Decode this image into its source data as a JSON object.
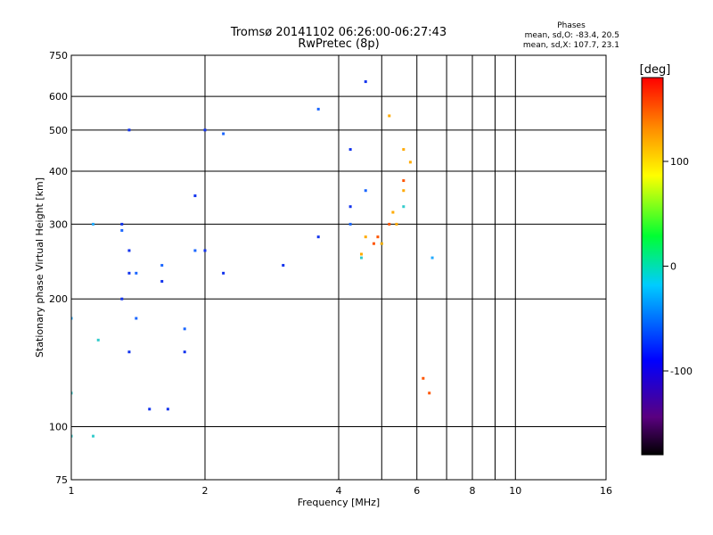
{
  "chart_data": {
    "type": "scatter",
    "title": "Tromsø 20141102 06:26:00-06:27:43",
    "subtitle": "RwPretec (8p)",
    "xlabel": "Frequency [MHz]",
    "ylabel": "Stationary phase Virtual Height [km]",
    "x_scale": "log",
    "y_scale": "log",
    "xlim": [
      1,
      16
    ],
    "ylim": [
      75,
      750
    ],
    "x_ticks": [
      1,
      2,
      4,
      6,
      8,
      10,
      16
    ],
    "x_gridlines": [
      2,
      4,
      5,
      6,
      7,
      8,
      9,
      10
    ],
    "y_ticks": [
      75,
      100,
      200,
      300,
      400,
      500,
      600,
      750
    ],
    "y_gridlines": [
      100,
      200,
      300,
      400,
      500,
      600
    ],
    "grid": true,
    "stats_title": "Phases",
    "stats_lines": [
      "mean, sd,O: -83.4, 20.5",
      "mean, sd,X: 107.7, 23.1"
    ],
    "colorbar": {
      "label": "[deg]",
      "range": [
        -180,
        180
      ],
      "ticks": [
        100,
        0,
        -100
      ],
      "tick_labels": [
        "100",
        "0",
        "-100"
      ]
    },
    "colors": {
      "phase_-100": "#1133ee",
      "phase_-80": "#1a66ff",
      "phase_-50": "#22aaff",
      "phase_-20": "#33cccc",
      "phase_60": "#ffaa00",
      "phase_120": "#ff5500"
    },
    "series": [
      {
        "x": [
          1.0,
          1.12,
          6.5
        ],
        "y": [
          180,
          300,
          250
        ],
        "phase": -50
      },
      {
        "x": [
          1.0,
          1.12,
          1.0,
          1.15,
          4.5,
          5.0,
          5.6
        ],
        "y": [
          95,
          95,
          120,
          160,
          250,
          270,
          330
        ],
        "phase": -20
      },
      {
        "x": [
          1.35,
          2.0,
          1.35,
          2.0,
          1.35,
          2.2,
          3.0,
          3.6,
          4.25,
          4.25,
          4.6,
          1.3,
          1.9,
          1.3,
          1.6,
          1.35,
          1.8,
          1.5,
          1.65
        ],
        "y": [
          500,
          500,
          260,
          260,
          230,
          230,
          240,
          280,
          330,
          450,
          650,
          300,
          350,
          200,
          220,
          150,
          150,
          110,
          110
        ],
        "phase": -100
      },
      {
        "x": [
          2.2,
          3.6,
          1.3,
          1.6,
          1.4,
          1.8,
          4.25,
          4.6,
          1.4,
          1.9
        ],
        "y": [
          490,
          560,
          290,
          240,
          180,
          170,
          300,
          360,
          230,
          260
        ],
        "phase": -80
      },
      {
        "x": [
          4.5,
          5.0,
          5.4,
          5.6,
          5.8,
          4.6,
          5.2,
          5.3,
          5.6
        ],
        "y": [
          255,
          270,
          300,
          360,
          420,
          280,
          540,
          320,
          450
        ],
        "phase": 60
      },
      {
        "x": [
          4.8,
          5.2,
          5.6,
          4.9,
          6.2,
          6.4
        ],
        "y": [
          270,
          300,
          380,
          280,
          130,
          120
        ],
        "phase": 120
      }
    ]
  }
}
